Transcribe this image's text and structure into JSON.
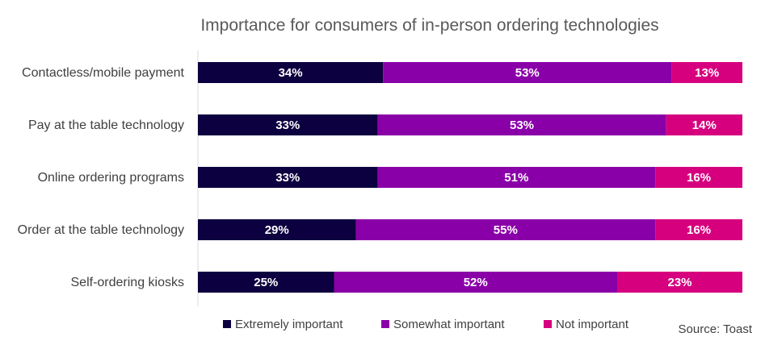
{
  "chart_data": {
    "type": "bar",
    "orientation": "horizontal",
    "stacked": true,
    "title": "Importance for consumers of in-person ordering technologies",
    "categories": [
      "Contactless/mobile payment",
      "Pay at the table technology",
      "Online ordering programs",
      "Order at the table technology",
      "Self-ordering kiosks"
    ],
    "series": [
      {
        "name": "Extremely important",
        "color": "#0d0040",
        "values": [
          34,
          33,
          33,
          29,
          25
        ]
      },
      {
        "name": "Somewhat important",
        "color": "#8a00a8",
        "values": [
          53,
          53,
          51,
          55,
          52
        ]
      },
      {
        "name": "Not important",
        "color": "#d6007f",
        "values": [
          13,
          14,
          16,
          16,
          23
        ]
      }
    ],
    "value_suffix": "%",
    "legend_position": "bottom",
    "grid": false,
    "source": "Source: Toast"
  }
}
